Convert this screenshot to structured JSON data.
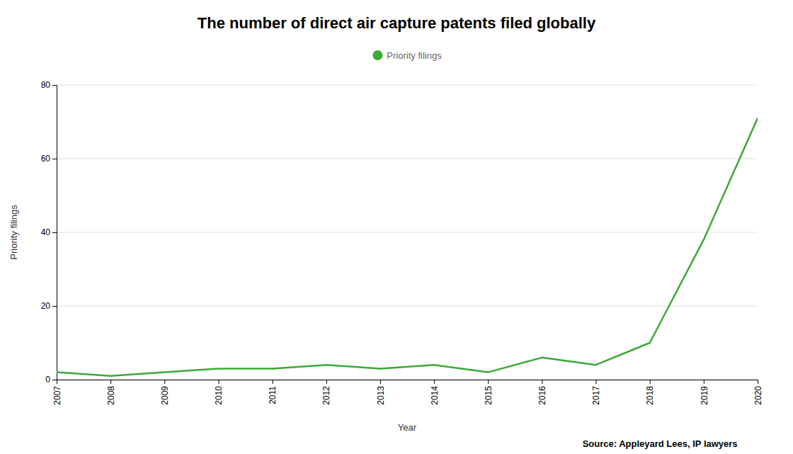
{
  "chart_data": {
    "type": "line",
    "title": "The number of direct air capture patents filed globally",
    "xlabel": "Year",
    "ylabel": "Priority filings",
    "x": [
      2007,
      2008,
      2009,
      2010,
      2011,
      2012,
      2013,
      2014,
      2015,
      2016,
      2017,
      2018,
      2019,
      2020
    ],
    "series": [
      {
        "name": "Priority filings",
        "color": "#3aaa35",
        "values": [
          2,
          1,
          2,
          3,
          3,
          4,
          3,
          4,
          2,
          6,
          4,
          10,
          38,
          71
        ]
      }
    ],
    "xlim": [
      2007,
      2020
    ],
    "xticks": [
      2007,
      2008,
      2009,
      2010,
      2011,
      2012,
      2013,
      2014,
      2015,
      2016,
      2017,
      2018,
      2019,
      2020
    ],
    "ylim": [
      0,
      80
    ],
    "yticks": [
      0,
      20,
      40,
      60,
      80
    ],
    "grid": true,
    "legend": "top",
    "annotations": [
      "Source: Appleyard Lees, IP lawyers"
    ]
  }
}
